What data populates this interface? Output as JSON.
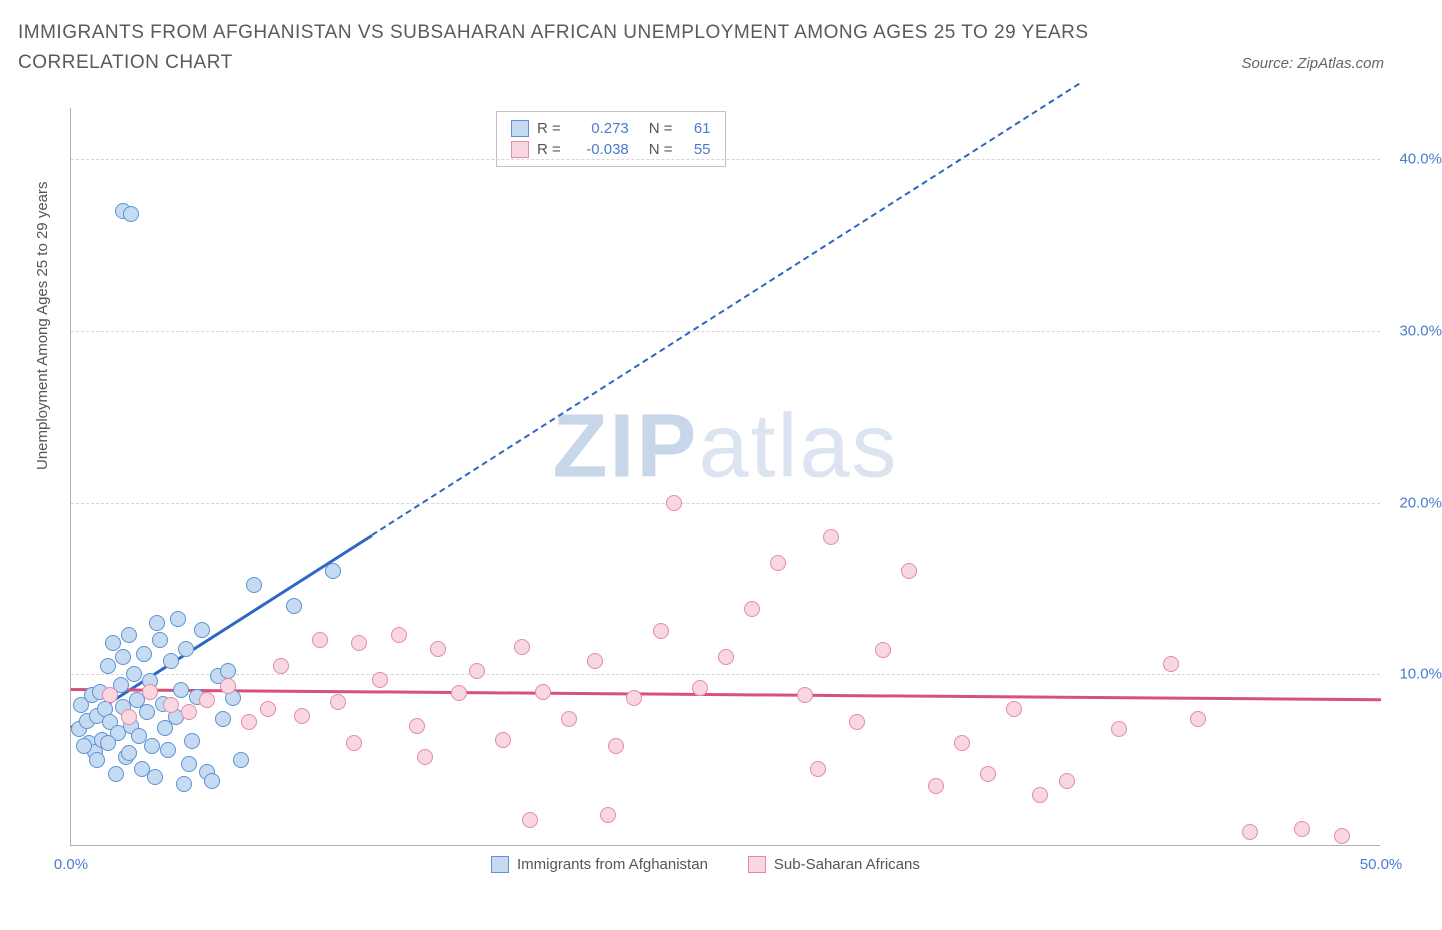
{
  "title": "IMMIGRANTS FROM AFGHANISTAN VS SUBSAHARAN AFRICAN UNEMPLOYMENT AMONG AGES 25 TO 29 YEARS CORRELATION CHART",
  "source_label": "Source: ZipAtlas.com",
  "watermark_zip": "ZIP",
  "watermark_atlas": "atlas",
  "y_axis_title": "Unemployment Among Ages 25 to 29 years",
  "chart": {
    "type": "scatter",
    "xlim": [
      0,
      50
    ],
    "ylim": [
      0,
      43
    ],
    "x_ticks": [
      {
        "v": 0,
        "label": "0.0%"
      },
      {
        "v": 50,
        "label": "50.0%"
      }
    ],
    "y_ticks": [
      {
        "v": 10,
        "label": "10.0%"
      },
      {
        "v": 20,
        "label": "20.0%"
      },
      {
        "v": 30,
        "label": "30.0%"
      },
      {
        "v": 40,
        "label": "40.0%"
      }
    ],
    "background_color": "#ffffff",
    "grid_color": "#d5d5d5",
    "marker_radius": 8,
    "marker_stroke_width": 1.5,
    "trend_line_width_solid": 3,
    "trend_line_width_dash": 2,
    "series": [
      {
        "key": "afghan",
        "label": "Immigrants from Afghanistan",
        "fill": "#c6dbf2",
        "stroke": "#5a93d6",
        "trend_color": "#2e66c4",
        "trend": {
          "x1": 0,
          "y1": 7.0,
          "x2_solid": 11.5,
          "y2_solid": 18.2,
          "x2_dash": 38.5,
          "y2_dash": 44.5
        },
        "points": [
          [
            0.3,
            6.8
          ],
          [
            0.4,
            8.2
          ],
          [
            0.6,
            7.3
          ],
          [
            0.7,
            6.0
          ],
          [
            0.8,
            8.8
          ],
          [
            0.9,
            5.5
          ],
          [
            1.0,
            7.6
          ],
          [
            1.1,
            9.0
          ],
          [
            1.2,
            6.2
          ],
          [
            1.3,
            8.0
          ],
          [
            1.4,
            10.5
          ],
          [
            1.5,
            7.2
          ],
          [
            1.6,
            11.8
          ],
          [
            1.8,
            6.6
          ],
          [
            1.9,
            9.4
          ],
          [
            2.0,
            8.1
          ],
          [
            2.1,
            5.2
          ],
          [
            2.2,
            12.3
          ],
          [
            2.3,
            7.0
          ],
          [
            2.4,
            10.0
          ],
          [
            2.5,
            8.5
          ],
          [
            2.6,
            6.4
          ],
          [
            2.8,
            11.2
          ],
          [
            2.9,
            7.8
          ],
          [
            3.0,
            9.6
          ],
          [
            3.1,
            5.8
          ],
          [
            3.3,
            13.0
          ],
          [
            3.5,
            8.3
          ],
          [
            3.6,
            6.9
          ],
          [
            3.8,
            10.8
          ],
          [
            4.0,
            7.5
          ],
          [
            4.2,
            9.1
          ],
          [
            4.4,
            11.5
          ],
          [
            4.6,
            6.1
          ],
          [
            4.8,
            8.7
          ],
          [
            5.0,
            12.6
          ],
          [
            5.2,
            4.3
          ],
          [
            5.4,
            3.8
          ],
          [
            5.6,
            9.9
          ],
          [
            5.8,
            7.4
          ],
          [
            6.2,
            8.6
          ],
          [
            6.5,
            5.0
          ],
          [
            2.7,
            4.5
          ],
          [
            3.2,
            4.0
          ],
          [
            1.7,
            4.2
          ],
          [
            4.3,
            3.6
          ],
          [
            2.0,
            37.0
          ],
          [
            2.3,
            36.8
          ],
          [
            7.0,
            15.2
          ],
          [
            8.5,
            14.0
          ],
          [
            10.0,
            16.0
          ],
          [
            6.0,
            10.2
          ],
          [
            3.4,
            12.0
          ],
          [
            4.1,
            13.2
          ],
          [
            2.0,
            11.0
          ],
          [
            1.4,
            6.0
          ],
          [
            0.5,
            5.8
          ],
          [
            1.0,
            5.0
          ],
          [
            2.2,
            5.4
          ],
          [
            3.7,
            5.6
          ],
          [
            4.5,
            4.8
          ]
        ]
      },
      {
        "key": "subsaharan",
        "label": "Sub-Saharan Africans",
        "fill": "#f8d7e0",
        "stroke": "#e38ba6",
        "trend_color": "#d94f7e",
        "trend": {
          "x1": 0,
          "y1": 9.2,
          "x2_solid": 50,
          "y2_solid": 8.6,
          "x2_dash": 50,
          "y2_dash": 8.6
        },
        "points": [
          [
            1.5,
            8.8
          ],
          [
            2.2,
            7.5
          ],
          [
            3.0,
            9.0
          ],
          [
            3.8,
            8.2
          ],
          [
            4.5,
            7.8
          ],
          [
            5.2,
            8.5
          ],
          [
            6.0,
            9.3
          ],
          [
            6.8,
            7.2
          ],
          [
            7.5,
            8.0
          ],
          [
            8.0,
            10.5
          ],
          [
            8.8,
            7.6
          ],
          [
            9.5,
            12.0
          ],
          [
            10.2,
            8.4
          ],
          [
            11.0,
            11.8
          ],
          [
            11.8,
            9.7
          ],
          [
            12.5,
            12.3
          ],
          [
            13.2,
            7.0
          ],
          [
            14.0,
            11.5
          ],
          [
            14.8,
            8.9
          ],
          [
            15.5,
            10.2
          ],
          [
            16.5,
            6.2
          ],
          [
            17.2,
            11.6
          ],
          [
            18.0,
            9.0
          ],
          [
            19.0,
            7.4
          ],
          [
            20.0,
            10.8
          ],
          [
            20.8,
            5.8
          ],
          [
            21.5,
            8.6
          ],
          [
            22.5,
            12.5
          ],
          [
            23.0,
            20.0
          ],
          [
            24.0,
            9.2
          ],
          [
            25.0,
            11.0
          ],
          [
            26.0,
            13.8
          ],
          [
            27.0,
            16.5
          ],
          [
            28.0,
            8.8
          ],
          [
            29.0,
            18.0
          ],
          [
            30.0,
            7.2
          ],
          [
            31.0,
            11.4
          ],
          [
            32.0,
            16.0
          ],
          [
            34.0,
            6.0
          ],
          [
            35.0,
            4.2
          ],
          [
            36.0,
            8.0
          ],
          [
            38.0,
            3.8
          ],
          [
            40.0,
            6.8
          ],
          [
            42.0,
            10.6
          ],
          [
            45.0,
            0.8
          ],
          [
            47.0,
            1.0
          ],
          [
            48.5,
            0.6
          ],
          [
            17.5,
            1.5
          ],
          [
            20.5,
            1.8
          ],
          [
            33.0,
            3.5
          ],
          [
            37.0,
            3.0
          ],
          [
            43.0,
            7.4
          ],
          [
            28.5,
            4.5
          ],
          [
            13.5,
            5.2
          ],
          [
            10.8,
            6.0
          ]
        ]
      }
    ]
  },
  "stats_box": {
    "rows": [
      {
        "swatch_fill": "#c6dbf2",
        "swatch_stroke": "#5a93d6",
        "r_label": "R =",
        "r_value": "0.273",
        "n_label": "N =",
        "n_value": "61"
      },
      {
        "swatch_fill": "#f8d7e0",
        "swatch_stroke": "#e38ba6",
        "r_label": "R =",
        "r_value": "-0.038",
        "n_label": "N =",
        "n_value": "55"
      }
    ]
  }
}
